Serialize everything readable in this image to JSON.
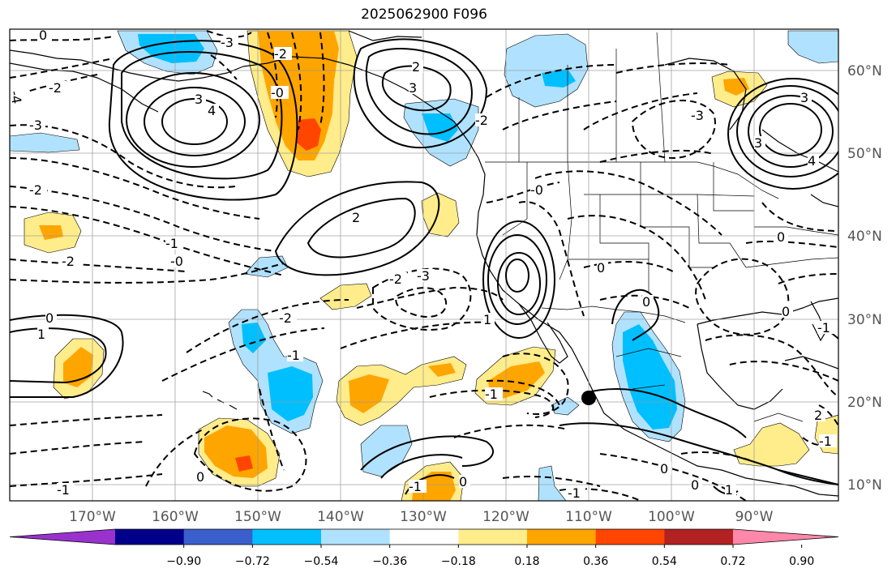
{
  "title": "2025062900 F096",
  "longitudes": [
    "170°W",
    "160°W",
    "150°W",
    "140°W",
    "130°W",
    "120°W",
    "110°W",
    "100°W",
    "90°W"
  ],
  "latitudes": [
    "60°N",
    "50°N",
    "40°N",
    "30°N",
    "20°N",
    "10°N"
  ],
  "colorbar": {
    "ticks": [
      "−0.90",
      "−0.72",
      "−0.54",
      "−0.36",
      "−0.18",
      "0.18",
      "0.36",
      "0.54",
      "0.72",
      "0.90"
    ],
    "colors": [
      "#9932cc",
      "#00008b",
      "#3a5fcd",
      "#00bfff",
      "#b0e2ff",
      "#ffffff",
      "#ffec8b",
      "#ffa500",
      "#ff4500",
      "#b22222",
      "#ff88aa"
    ]
  },
  "contour_labels": {
    "l_n0a": "0",
    "l_n3a": "-3",
    "l_n2a": "-2",
    "l_n4a": "-4",
    "l_n3b": "-3",
    "l_n0b": "-0",
    "l_3a": "3",
    "l_4a": "4",
    "l_n2b": "-2",
    "l_3b": "3",
    "l_2a": "2",
    "l_3c": "3",
    "l_2b": "-2",
    "l_n1a": "-1",
    "l_n2c": "-2",
    "l_n0c": "-0",
    "l_2c": "2",
    "l_n2d": "-2",
    "l_n3c": "-3",
    "l_n2e": "-2",
    "l_0a": "0",
    "l_1a": "1",
    "l_n1b": "-1",
    "l_n0d": "-0",
    "l_n0e": "0",
    "l_1b": "1",
    "l_0b": "0",
    "l_n0f": "0",
    "l_n1c": "-1",
    "l_n0g": "0",
    "l_n1d": "-1",
    "l_n1e": "-1",
    "l_n0h": "0",
    "l_n0i": "0",
    "l_n2f": "-2",
    "l_3d": "3",
    "l_4b": "4",
    "l_n3d": "-3",
    "l_n0j": "0",
    "l_n1f": "-1",
    "l_n2g": "2",
    "l_n1g": "-1",
    "l_n1h": "1",
    "l_n1i": "-1",
    "l_n0k": "0"
  },
  "markers": {
    "point": "black-dot"
  }
}
